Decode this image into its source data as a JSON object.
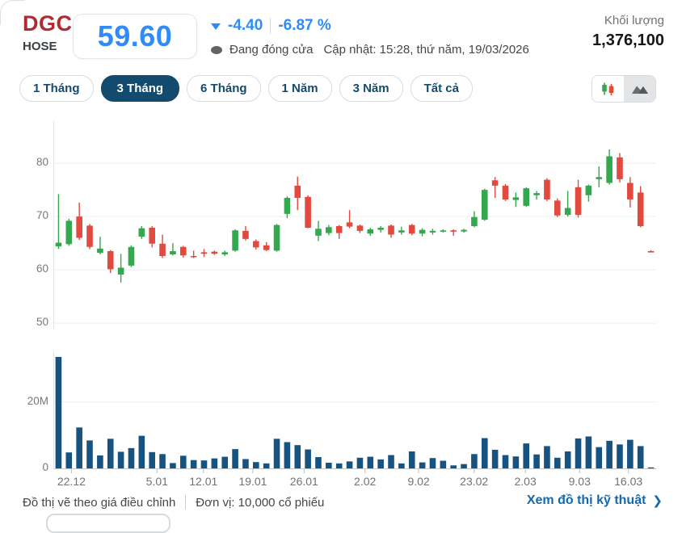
{
  "header": {
    "symbol": "DGC",
    "exchange": "HOSE",
    "price": "59.60",
    "change": "-4.40",
    "change_pct": "-6.87 %",
    "status": "Đang đóng cửa",
    "updated": "Cập nhật: 15:28, thứ năm, 19/03/2026",
    "volume_label": "Khối lượng",
    "volume_value": "1,376,100"
  },
  "range_tabs": [
    {
      "label": "1 Tháng",
      "active": false
    },
    {
      "label": "3 Tháng",
      "active": true
    },
    {
      "label": "6 Tháng",
      "active": false
    },
    {
      "label": "1 Năm",
      "active": false
    },
    {
      "label": "3 Năm",
      "active": false
    },
    {
      "label": "Tất cả",
      "active": false
    }
  ],
  "chart_toggle": {
    "candlestick_icon": "candlestick-chart",
    "area_icon": "area-chart",
    "selected": "candlestick"
  },
  "colors": {
    "up": "#34a84e",
    "down": "#e2493f",
    "volume_bar": "#175380",
    "accent_blue": "#2e8bf7",
    "navy": "#134b6e",
    "link_blue": "#1668a8",
    "gridline": "#eceef0",
    "axis": "#c6cacd"
  },
  "chart_data": [
    {
      "type": "candlestick",
      "title": "DGC adjusted price, 3 months",
      "ylabel": "",
      "ylim": [
        48.8,
        87.9
      ],
      "ytick_values": [
        80,
        70,
        60,
        50
      ],
      "grid": true,
      "candles_ohlc": [
        [
          64.4,
          74.2,
          63.9,
          65.1
        ],
        [
          64.8,
          69.6,
          64.5,
          69.2
        ],
        [
          70.0,
          72.6,
          65.6,
          66.0
        ],
        [
          68.3,
          68.6,
          63.9,
          64.3
        ],
        [
          63.2,
          66.2,
          62.9,
          64.0
        ],
        [
          63.5,
          63.7,
          59.4,
          60.1
        ],
        [
          59.1,
          63.0,
          57.6,
          60.4
        ],
        [
          60.8,
          64.6,
          60.5,
          64.3
        ],
        [
          66.2,
          68.2,
          65.8,
          67.8
        ],
        [
          67.9,
          68.2,
          64.2,
          64.9
        ],
        [
          64.9,
          66.6,
          62.2,
          62.6
        ],
        [
          62.9,
          65.0,
          62.7,
          63.5
        ],
        [
          64.3,
          64.5,
          62.3,
          62.7
        ],
        [
          62.6,
          63.6,
          62.2,
          62.4
        ],
        [
          63.3,
          63.9,
          62.4,
          63.0
        ],
        [
          63.4,
          63.6,
          62.8,
          63.0
        ],
        [
          62.9,
          63.6,
          62.6,
          63.3
        ],
        [
          63.6,
          67.6,
          63.4,
          67.4
        ],
        [
          67.3,
          68.2,
          65.5,
          65.8
        ],
        [
          65.4,
          65.7,
          63.8,
          64.2
        ],
        [
          64.6,
          65.2,
          63.5,
          63.7
        ],
        [
          63.6,
          68.6,
          63.4,
          68.4
        ],
        [
          70.5,
          73.8,
          69.7,
          73.5
        ],
        [
          75.8,
          77.5,
          71.2,
          73.5
        ],
        [
          73.7,
          74.0,
          67.8,
          67.9
        ],
        [
          66.4,
          69.2,
          65.4,
          67.7
        ],
        [
          66.9,
          68.4,
          66.5,
          68.0
        ],
        [
          68.2,
          68.4,
          65.8,
          66.9
        ],
        [
          68.9,
          71.2,
          67.8,
          68.1
        ],
        [
          68.3,
          68.5,
          66.9,
          67.3
        ],
        [
          66.8,
          67.9,
          66.4,
          67.6
        ],
        [
          67.5,
          68.2,
          67.0,
          67.9
        ],
        [
          68.3,
          68.5,
          66.0,
          66.6
        ],
        [
          67.0,
          68.1,
          66.6,
          67.4
        ],
        [
          68.4,
          68.6,
          66.5,
          66.8
        ],
        [
          66.8,
          67.8,
          66.3,
          67.5
        ],
        [
          67.0,
          67.7,
          66.6,
          67.3
        ],
        [
          67.3,
          67.6,
          67.0,
          67.4
        ],
        [
          67.4,
          67.6,
          66.4,
          67.2
        ],
        [
          67.2,
          67.7,
          67.0,
          67.5
        ],
        [
          68.2,
          71.0,
          68.0,
          69.9
        ],
        [
          69.4,
          75.2,
          69.2,
          75.0
        ],
        [
          76.8,
          77.4,
          73.5,
          75.8
        ],
        [
          75.8,
          76.1,
          72.9,
          73.2
        ],
        [
          73.1,
          74.5,
          71.8,
          73.6
        ],
        [
          72.0,
          75.5,
          71.8,
          75.3
        ],
        [
          74.0,
          74.8,
          73.2,
          74.4
        ],
        [
          76.9,
          77.2,
          72.9,
          73.2
        ],
        [
          73.0,
          73.4,
          69.9,
          70.2
        ],
        [
          70.3,
          74.8,
          70.0,
          71.6
        ],
        [
          75.5,
          76.9,
          69.8,
          70.3
        ],
        [
          74.0,
          76.0,
          72.8,
          75.8
        ],
        [
          77.0,
          79.4,
          75.5,
          77.4
        ],
        [
          76.3,
          82.6,
          76.0,
          81.3
        ],
        [
          81.1,
          81.9,
          76.4,
          77.0
        ],
        [
          76.3,
          77.4,
          71.7,
          73.2
        ],
        [
          74.5,
          75.7,
          68.0,
          68.2
        ],
        [
          63.5,
          63.7,
          63.3,
          63.4
        ]
      ]
    },
    {
      "type": "bar",
      "title": "Volume (millions)",
      "ylim": [
        0,
        35.2
      ],
      "gridline_values": [
        20
      ],
      "yticks": [
        {
          "label": "20M",
          "value": 20
        },
        {
          "label": "0",
          "value": 0
        }
      ],
      "values": [
        33.5,
        4.8,
        12.3,
        8.4,
        3.9,
        8.9,
        5.0,
        6.1,
        9.8,
        4.9,
        4.3,
        1.6,
        3.8,
        2.5,
        2.4,
        3.0,
        3.5,
        5.8,
        2.8,
        1.9,
        1.5,
        8.9,
        7.9,
        7.0,
        5.7,
        3.4,
        1.7,
        1.5,
        2.1,
        3.2,
        3.5,
        2.7,
        4.0,
        1.5,
        5.1,
        1.8,
        3.1,
        2.3,
        0.9,
        1.3,
        4.3,
        9.1,
        5.6,
        4.0,
        3.6,
        7.5,
        4.2,
        6.7,
        3.2,
        5.1,
        9.0,
        9.6,
        6.4,
        8.3,
        7.2,
        8.6,
        6.7,
        0.3
      ]
    }
  ],
  "x_axis": {
    "labels": [
      "22.12",
      "5.01",
      "12.01",
      "19.01",
      "26.01",
      "2.02",
      "9.02",
      "23.02",
      "2.03",
      "9.03",
      "16.03"
    ],
    "fracs": [
      0.03,
      0.172,
      0.249,
      0.331,
      0.416,
      0.517,
      0.606,
      0.698,
      0.783,
      0.873,
      0.954
    ]
  },
  "footer": {
    "note1": "Đồ thị vẽ theo giá điều chỉnh",
    "note2": "Đơn vị: 10,000 cổ phiếu",
    "link": "Xem đồ thị kỹ thuật",
    "chevron": "❯"
  }
}
